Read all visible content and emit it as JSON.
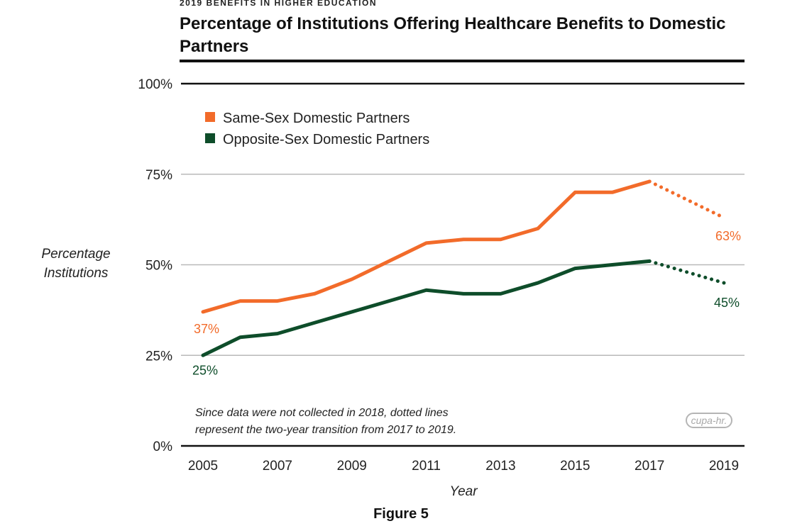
{
  "header": {
    "kicker": "2019 BENEFITS IN HIGHER EDUCATION",
    "title": "Percentage of Institutions Offering Healthcare Benefits to Domestic Partners"
  },
  "chart_data": {
    "type": "line",
    "ylabel": "Percentage Institutions",
    "ylabel_lines": [
      "Percentage",
      "Institutions"
    ],
    "xlabel": "Year",
    "ylim": [
      0,
      100
    ],
    "yticks": [
      0,
      25,
      50,
      75,
      100
    ],
    "ytick_labels": [
      "0%",
      "25%",
      "50%",
      "75%",
      "100%"
    ],
    "xlim": [
      2005,
      2019
    ],
    "xticks": [
      2005,
      2007,
      2009,
      2011,
      2013,
      2015,
      2017,
      2019
    ],
    "grid": true,
    "legend_position": "top-left",
    "series": [
      {
        "name": "Same-Sex Domestic Partners",
        "color": "#f26b2a",
        "x": [
          2005,
          2006,
          2007,
          2008,
          2009,
          2010,
          2011,
          2012,
          2013,
          2014,
          2015,
          2016,
          2017
        ],
        "values": [
          37,
          40,
          40,
          42,
          46,
          51,
          56,
          57,
          57,
          60,
          70,
          70,
          73
        ],
        "dotted_segment": {
          "x": [
            2017,
            2019
          ],
          "values": [
            73,
            63
          ]
        },
        "start_label": "37%",
        "end_label": "63%"
      },
      {
        "name": "Opposite-Sex Domestic Partners",
        "color": "#0e4d2a",
        "x": [
          2005,
          2006,
          2007,
          2008,
          2009,
          2010,
          2011,
          2012,
          2013,
          2014,
          2015,
          2016,
          2017
        ],
        "values": [
          25,
          30,
          31,
          34,
          37,
          40,
          43,
          42,
          42,
          45,
          49,
          50,
          51
        ],
        "dotted_segment": {
          "x": [
            2017,
            2019
          ],
          "values": [
            51,
            45
          ]
        },
        "start_label": "25%",
        "end_label": "45%"
      }
    ],
    "annotation_lines": [
      "Since data were not collected in 2018, dotted lines",
      "represent the two-year transition from 2017 to 2019."
    ]
  },
  "logo_text": "cupa-hr.",
  "figure_label": "Figure 5"
}
